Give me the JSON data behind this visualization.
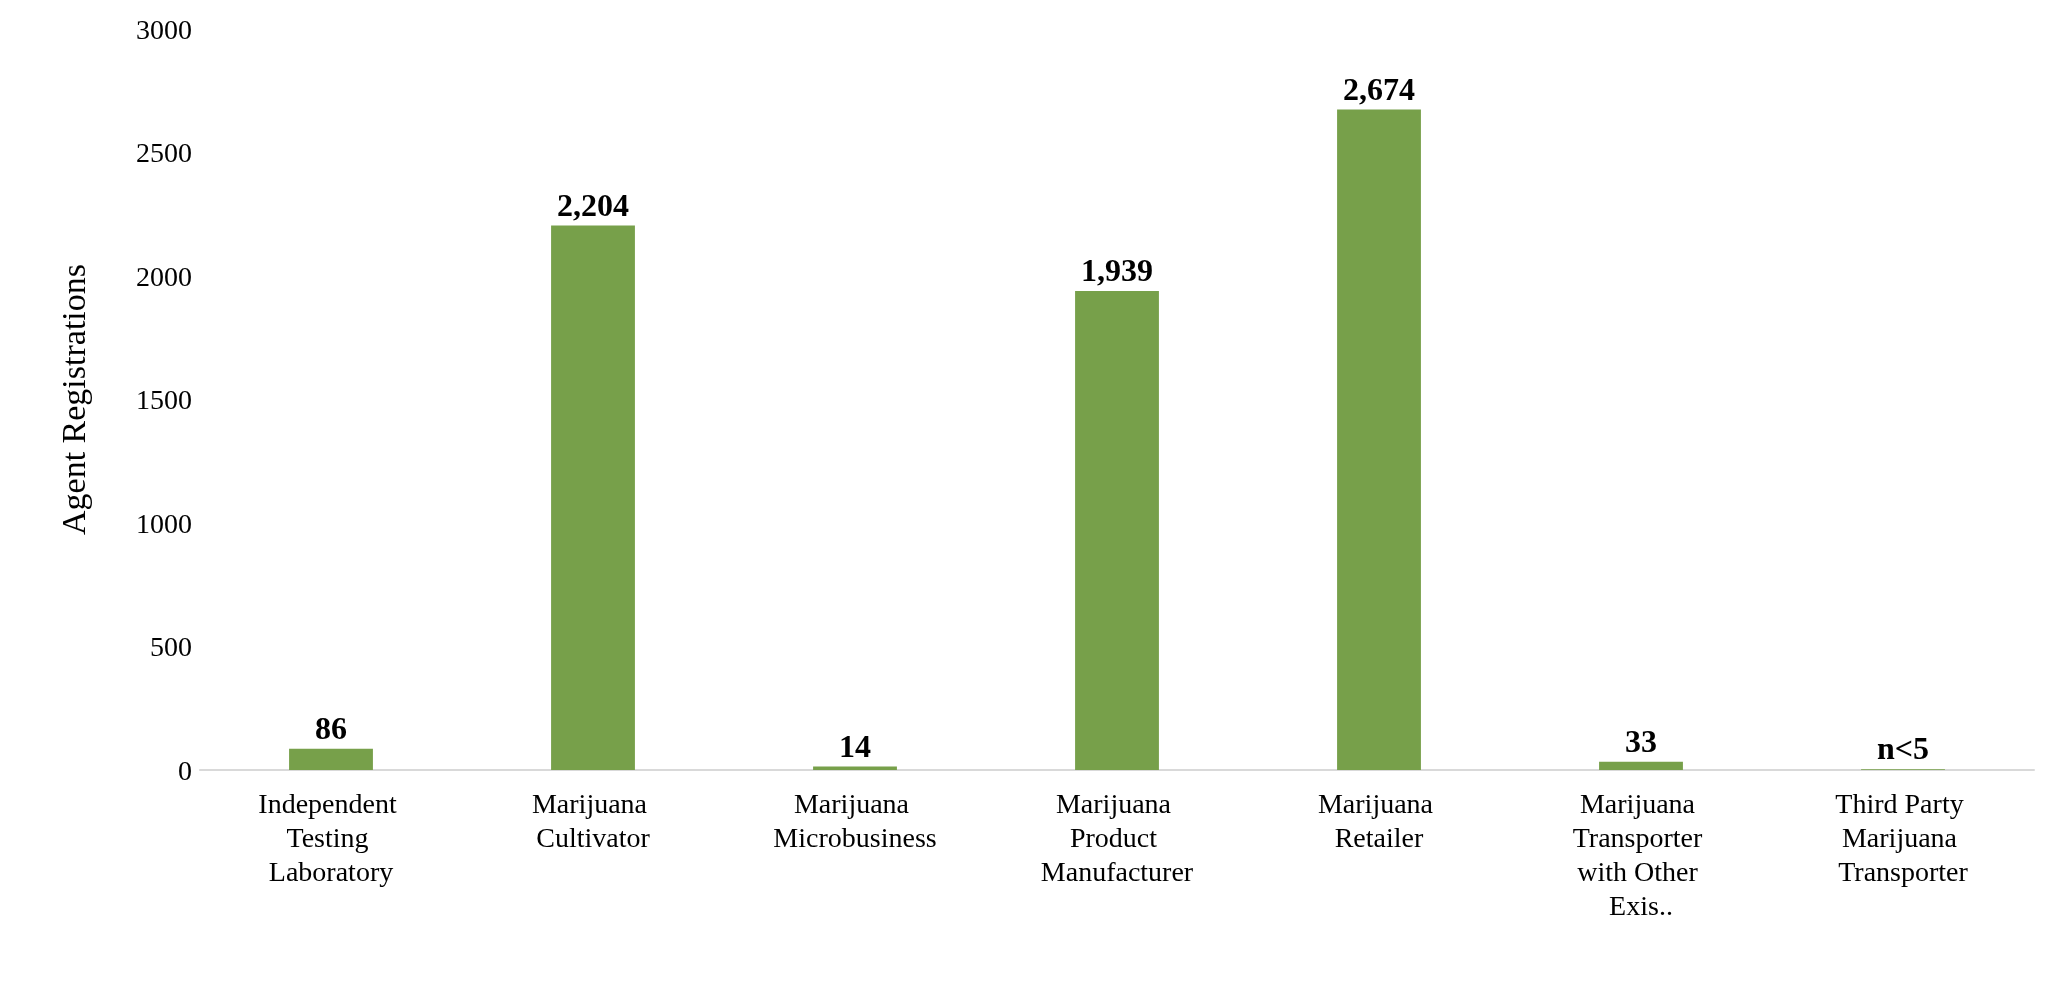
{
  "chart_data": {
    "type": "bar",
    "ylabel": "Agent Registrations",
    "categories": [
      "Independent Testing Laboratory",
      "Marijuana Cultivator",
      "Marijuana Microbusiness",
      "Marijuana Product Manufacturer",
      "Marijuana Retailer",
      "Marijuana Transporter with Other Exis..",
      "Third Party Marijuana Transporter"
    ],
    "values": [
      86,
      2204,
      14,
      1939,
      2674,
      33,
      3
    ],
    "value_labels": [
      "86",
      "2,204",
      "14",
      "1,939",
      "2,674",
      "33",
      "n<5"
    ],
    "color": "#77a04a",
    "ylim": [
      0,
      3000
    ],
    "yticks": [
      0,
      500,
      1000,
      1500,
      2000,
      2500,
      3000
    ],
    "grid": false
  }
}
